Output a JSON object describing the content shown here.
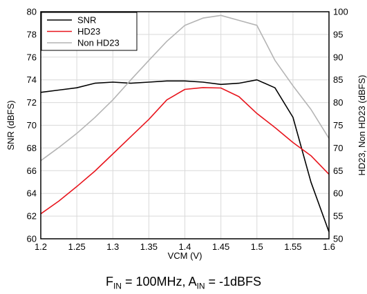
{
  "chart_data": {
    "type": "line",
    "xlabel": "VCM (V)",
    "ylabel": "SNR (dBFS)",
    "y2label": "HD23, Non HD23 (dBFS)",
    "xlim": [
      1.2,
      1.6
    ],
    "ylim": [
      60,
      80
    ],
    "y2lim": [
      50,
      100
    ],
    "xticks": [
      "1.2",
      "1.25",
      "1.3",
      "1.35",
      "1.4",
      "1.45",
      "1.5",
      "1.55",
      "1.6"
    ],
    "yticks": [
      "60",
      "62",
      "64",
      "66",
      "68",
      "70",
      "72",
      "74",
      "76",
      "78",
      "80"
    ],
    "y2ticks": [
      "50",
      "55",
      "60",
      "65",
      "70",
      "75",
      "80",
      "85",
      "90",
      "95",
      "100"
    ],
    "grid": true,
    "legend_position": "top-left",
    "x": [
      1.2,
      1.225,
      1.25,
      1.275,
      1.3,
      1.325,
      1.35,
      1.375,
      1.4,
      1.425,
      1.45,
      1.475,
      1.5,
      1.525,
      1.55,
      1.575,
      1.6
    ],
    "series": [
      {
        "name": "SNR",
        "axis": "left",
        "color": "#000000",
        "values": [
          72.9,
          73.1,
          73.3,
          73.7,
          73.8,
          73.7,
          73.8,
          73.9,
          73.9,
          73.8,
          73.6,
          73.7,
          74.0,
          73.3,
          70.7,
          65.0,
          60.6
        ]
      },
      {
        "name": "HD23",
        "axis": "right",
        "color": "#e8141c",
        "values": [
          55.5,
          58.3,
          61.5,
          64.9,
          68.7,
          72.5,
          76.3,
          80.6,
          82.9,
          83.3,
          83.2,
          81.3,
          77.6,
          74.5,
          71.2,
          68.3,
          64.2
        ]
      },
      {
        "name": "Non HD23",
        "axis": "right",
        "color": "#b4b4b4",
        "values": [
          67.2,
          70.1,
          73.2,
          76.7,
          80.6,
          85.0,
          89.3,
          93.5,
          97.0,
          98.6,
          99.2,
          98.1,
          97.0,
          89.3,
          83.7,
          78.5,
          72.1
        ]
      }
    ]
  },
  "caption": {
    "f": "F",
    "f_sub": "IN",
    "f_rest": " = 100MHz, A",
    "a_sub": "IN",
    "a_rest": " = -1dBFS"
  }
}
